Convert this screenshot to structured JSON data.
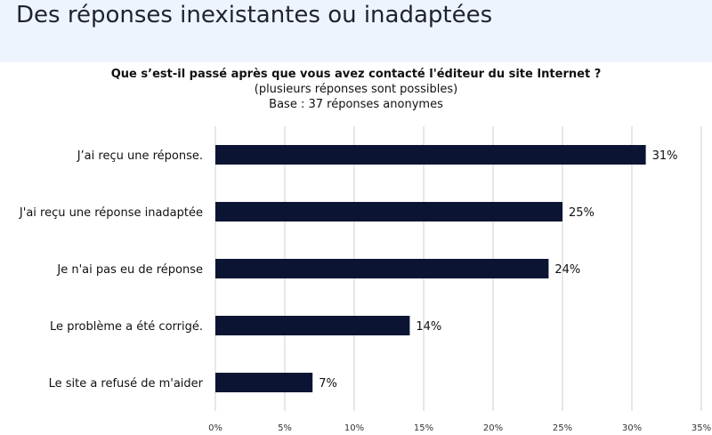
{
  "page": {
    "title": "Des réponses inexistantes ou inadaptées"
  },
  "colors": {
    "bar": "#0b1533",
    "grid": "#cfcfcf",
    "header_bg": "#eef4fb"
  },
  "chart_data": {
    "type": "bar",
    "orientation": "horizontal",
    "title": "Que s’est-il passé après que vous avez contacté l'éditeur du site Internet ?",
    "subtitle": "(plusieurs réponses sont possibles)",
    "base": "Base : 37 réponses anonymes",
    "categories": [
      "J’ai reçu une réponse.",
      "J'ai reçu une réponse inadaptée",
      "Je n'ai pas eu de réponse",
      "Le problème a été corrigé.",
      "Le site a refusé de m'aider"
    ],
    "values": [
      31,
      25,
      24,
      14,
      7
    ],
    "data_labels": [
      "31%",
      "25%",
      "24%",
      "14%",
      "7%"
    ],
    "xlim": [
      0,
      35
    ],
    "xticks": [
      0,
      5,
      10,
      15,
      20,
      25,
      30,
      35
    ],
    "xtick_labels": [
      "0%",
      "5%",
      "10%",
      "15%",
      "20%",
      "25%",
      "30%",
      "35%"
    ],
    "grid": "vertical",
    "legend": "none"
  }
}
